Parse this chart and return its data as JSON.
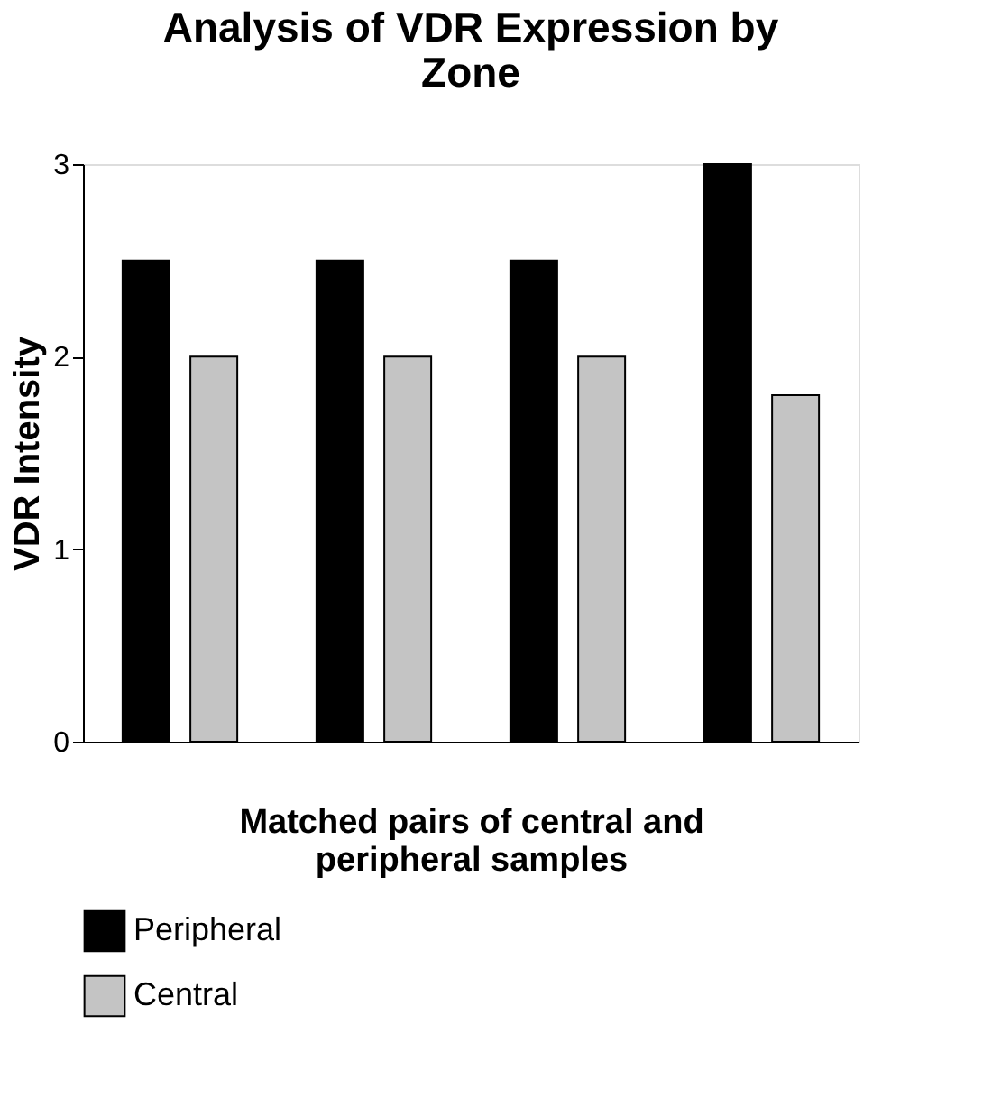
{
  "chart_data": {
    "type": "bar",
    "title": "Analysis of VDR Expression by Zone",
    "xlabel": "Matched pairs of central and peripheral samples",
    "ylabel": "VDR Intensity",
    "categories": [
      null,
      null,
      null,
      null
    ],
    "series": [
      {
        "name": "Peripheral",
        "color": "#000000",
        "values": [
          2.5,
          2.5,
          2.5,
          3
        ]
      },
      {
        "name": "Central",
        "color": "#c4c4c4",
        "values": [
          2,
          2,
          2,
          1.8
        ]
      }
    ],
    "ylim": [
      0,
      3
    ],
    "yticks": [
      0,
      1,
      2,
      3
    ],
    "legend": "bottom"
  }
}
